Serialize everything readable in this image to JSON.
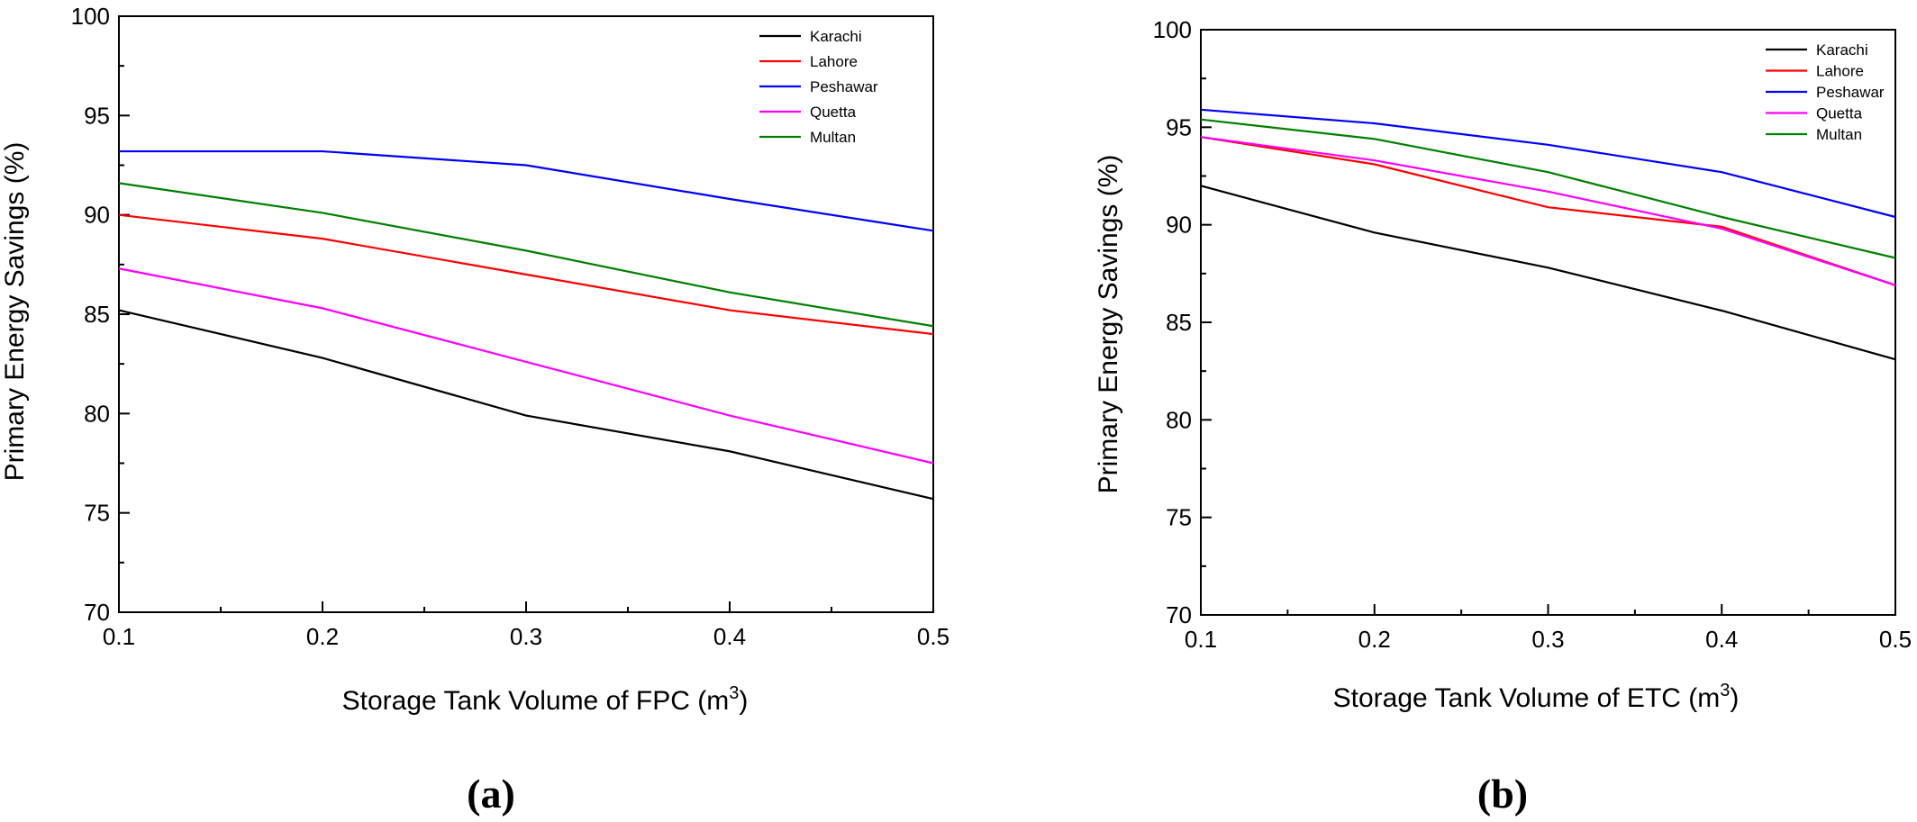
{
  "chart_data": [
    {
      "type": "line",
      "panel_label": "(a)",
      "xlabel": "Storage Tank Volume of FPC (m",
      "xlabel_sup": "3",
      "xlabel_end": ")",
      "ylabel": "Primary Energy Savings (%)",
      "x": [
        0.1,
        0.2,
        0.3,
        0.4,
        0.5
      ],
      "xlim": [
        0.1,
        0.5
      ],
      "ylim": [
        70,
        100
      ],
      "xticks": [
        "0.1",
        "0.2",
        "0.3",
        "0.4",
        "0.5"
      ],
      "yticks": [
        "70",
        "75",
        "80",
        "85",
        "90",
        "95",
        "100"
      ],
      "grid": false,
      "legend": "top-right",
      "series": [
        {
          "name": "Karachi",
          "color": "#000000",
          "values": [
            85.2,
            82.8,
            79.9,
            78.1,
            75.7
          ]
        },
        {
          "name": "Lahore",
          "color": "#ff0000",
          "values": [
            90.0,
            88.8,
            87.0,
            85.2,
            84.0
          ]
        },
        {
          "name": "Peshawar",
          "color": "#0000ff",
          "values": [
            93.2,
            93.2,
            92.5,
            90.8,
            89.2
          ]
        },
        {
          "name": "Quetta",
          "color": "#ff00ff",
          "values": [
            87.3,
            85.3,
            82.6,
            79.9,
            77.5
          ]
        },
        {
          "name": "Multan",
          "color": "#008000",
          "values": [
            91.6,
            90.1,
            88.2,
            86.1,
            84.4
          ]
        }
      ]
    },
    {
      "type": "line",
      "panel_label": "(b)",
      "xlabel": "Storage Tank Volume of ETC (m",
      "xlabel_sup": "3",
      "xlabel_end": ")",
      "ylabel": "Primary Energy Savings (%)",
      "x": [
        0.1,
        0.2,
        0.3,
        0.4,
        0.5
      ],
      "xlim": [
        0.1,
        0.5
      ],
      "ylim": [
        70,
        100
      ],
      "xticks": [
        "0.1",
        "0.2",
        "0.3",
        "0.4",
        "0.5"
      ],
      "yticks": [
        "70",
        "75",
        "80",
        "85",
        "90",
        "95",
        "100"
      ],
      "grid": false,
      "legend": "top-right",
      "series": [
        {
          "name": "Karachi",
          "color": "#000000",
          "values": [
            92.0,
            89.6,
            87.8,
            85.6,
            83.1
          ]
        },
        {
          "name": "Lahore",
          "color": "#ff0000",
          "values": [
            94.5,
            93.1,
            90.9,
            89.9,
            86.9
          ]
        },
        {
          "name": "Peshawar",
          "color": "#0000ff",
          "values": [
            95.9,
            95.2,
            94.1,
            92.7,
            90.4
          ]
        },
        {
          "name": "Quetta",
          "color": "#ff00ff",
          "values": [
            94.5,
            93.3,
            91.7,
            89.8,
            86.9
          ]
        },
        {
          "name": "Multan",
          "color": "#008000",
          "values": [
            95.4,
            94.4,
            92.7,
            90.4,
            88.3
          ]
        }
      ]
    }
  ]
}
